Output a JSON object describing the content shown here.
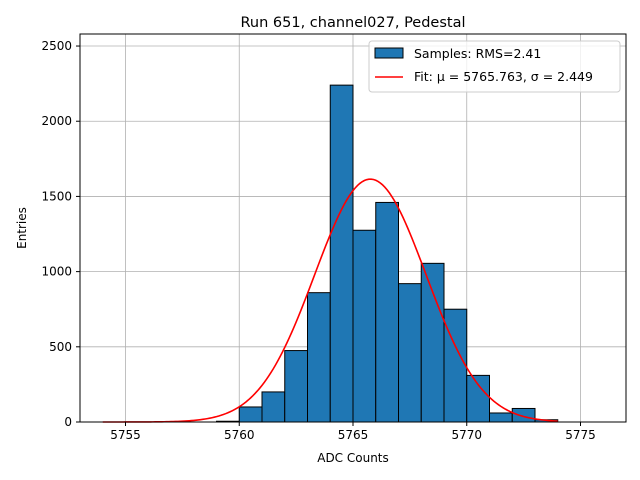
{
  "chart_data": {
    "type": "bar",
    "title": "Run 651, channel027, Pedestal",
    "xlabel": "ADC Counts",
    "ylabel": "Entries",
    "xlim": [
      5753.0,
      5777.0
    ],
    "ylim": [
      0,
      2580
    ],
    "xticks": [
      5755,
      5760,
      5765,
      5770,
      5775
    ],
    "yticks": [
      0,
      500,
      1000,
      1500,
      2000,
      2500
    ],
    "grid": true,
    "legend_position": "top-right",
    "bin_width": 1,
    "bins": [
      {
        "x0": 5759.0,
        "value": 5
      },
      {
        "x0": 5760.0,
        "value": 100
      },
      {
        "x0": 5761.0,
        "value": 200
      },
      {
        "x0": 5762.0,
        "value": 475
      },
      {
        "x0": 5763.0,
        "value": 860
      },
      {
        "x0": 5764.0,
        "value": 2240
      },
      {
        "x0": 5765.0,
        "value": 1275
      },
      {
        "x0": 5766.0,
        "value": 1460
      },
      {
        "x0": 5767.0,
        "value": 920
      },
      {
        "x0": 5768.0,
        "value": 1055
      },
      {
        "x0": 5769.0,
        "value": 750
      },
      {
        "x0": 5770.0,
        "value": 310
      },
      {
        "x0": 5771.0,
        "value": 60
      },
      {
        "x0": 5772.0,
        "value": 90
      },
      {
        "x0": 5773.0,
        "value": 15
      }
    ],
    "fit": {
      "mu": 5765.763,
      "sigma": 2.449,
      "amplitude": 1615,
      "x_range": [
        5754.0,
        5774.0
      ]
    },
    "series": [
      {
        "name": "Samples: RMS=2.41",
        "kind": "histogram",
        "color": "#1f77b4"
      },
      {
        "name": "Fit: μ = 5765.763, σ = 2.449",
        "kind": "line",
        "color": "#ff0000"
      }
    ]
  }
}
